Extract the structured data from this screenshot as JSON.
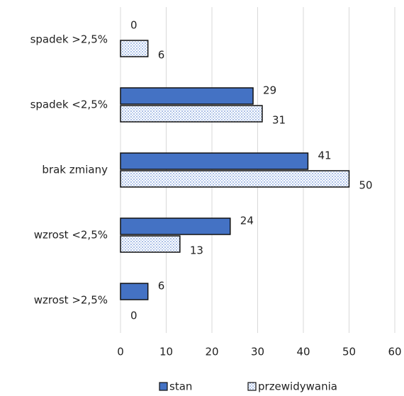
{
  "chart_data": {
    "type": "bar",
    "orientation": "horizontal",
    "categories": [
      "spadek >2,5%",
      "spadek <2,5%",
      "brak zmiany",
      "wzrost <2,5%",
      "wzrost >2,5%"
    ],
    "series": [
      {
        "name": "stan",
        "color": "#4472c4",
        "values": [
          0,
          29,
          41,
          24,
          6
        ]
      },
      {
        "name": "przewidywania",
        "color": "#4472c4",
        "pattern": "dots",
        "values": [
          6,
          31,
          50,
          13,
          0
        ]
      }
    ],
    "xlim": [
      0,
      60
    ],
    "xticks": [
      0,
      10,
      20,
      30,
      40,
      50,
      60
    ],
    "grid": true,
    "legend": "bottom"
  }
}
